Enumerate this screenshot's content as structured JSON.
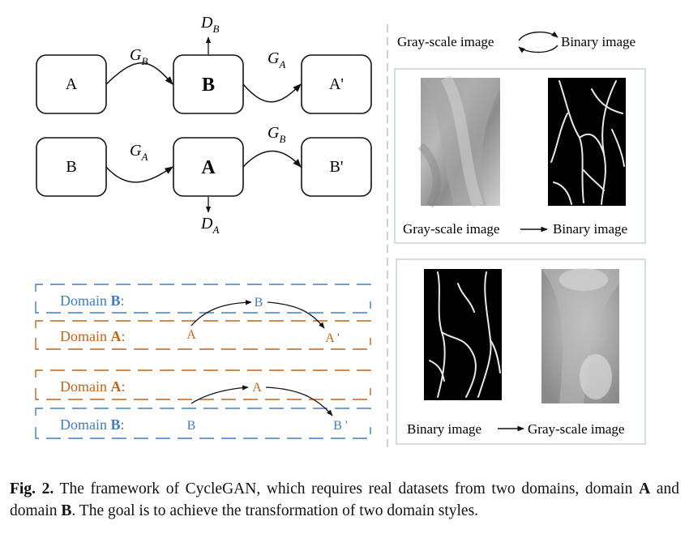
{
  "figure": {
    "cycle_top": {
      "input": "A",
      "middle": "B",
      "output": "A'",
      "gen_first_symbol": "G",
      "gen_first_sub": "B",
      "gen_second_symbol": "G",
      "gen_second_sub": "A",
      "disc_symbol": "D",
      "disc_sub": "B"
    },
    "cycle_bottom": {
      "input": "B",
      "middle": "A",
      "output": "B'",
      "gen_first_symbol": "G",
      "gen_first_sub": "A",
      "gen_second_symbol": "G",
      "gen_second_sub": "B",
      "disc_symbol": "D",
      "disc_sub": "A"
    },
    "domains_top": {
      "row1_label": "Domain ",
      "row1_bold": "B",
      "row1_colon": ":",
      "row2_label": "Domain ",
      "row2_bold": "A",
      "row2_colon": ":",
      "point_start": "A",
      "point_mid": "B",
      "point_end": "A '"
    },
    "domains_bottom": {
      "row1_label": "Domain ",
      "row1_bold": "A",
      "row1_colon": ":",
      "row2_label": "Domain ",
      "row2_bold": "B",
      "row2_colon": ":",
      "point_start": "B",
      "point_mid": "A",
      "point_end": "B '"
    },
    "legend": {
      "left": "Gray-scale image",
      "right": "Binary image"
    },
    "panel_top_label_left": "Gray-scale image",
    "panel_top_label_right": "Binary image",
    "panel_bottom_label_left": "Binary image",
    "panel_bottom_label_right": "Gray-scale image",
    "colors": {
      "domain_blue": "#3f7ec4",
      "domain_orange": "#c3641a",
      "panel_border": "#c9d3df",
      "divider": "#c4c4c4"
    }
  },
  "caption": {
    "label": "Fig. 2.",
    "text_1": " The framework of CycleGAN, which requires real datasets from two domains, domain ",
    "bold_a": "A",
    "text_2": " and domain ",
    "bold_b": "B",
    "text_3": ". The goal is to achieve the transformation of two domain styles."
  }
}
